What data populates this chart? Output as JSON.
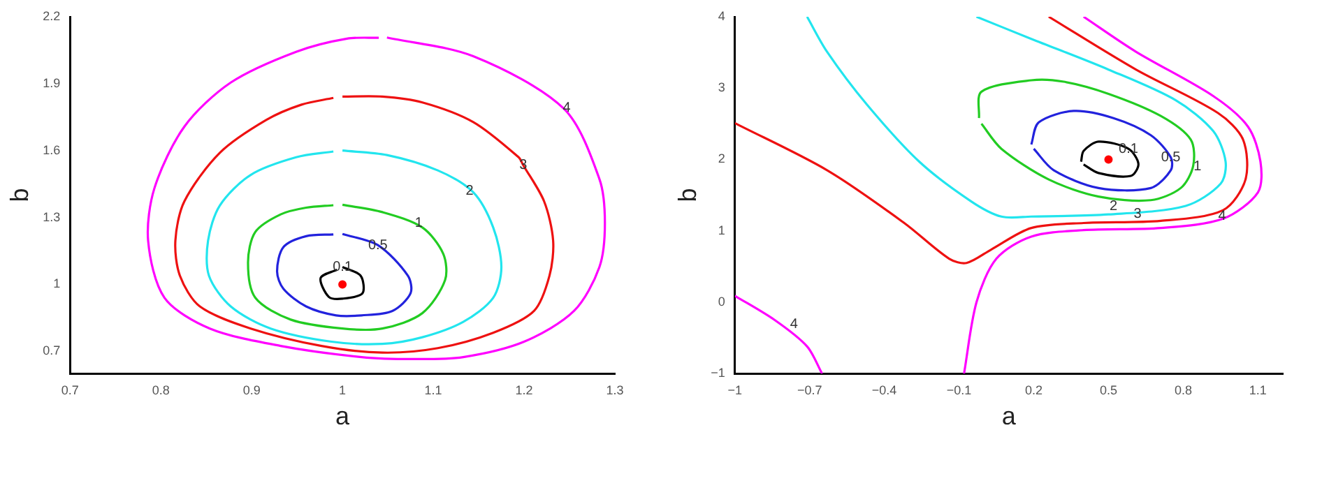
{
  "chart_data": [
    {
      "type": "line",
      "xlabel": "a",
      "ylabel": "b",
      "xlim": [
        0.7,
        1.3
      ],
      "ylim": [
        0.6,
        2.2
      ],
      "xticks": [
        0.7,
        0.8,
        0.9,
        1,
        1.1,
        1.2,
        1.3
      ],
      "yticks": [
        0.7,
        1,
        1.3,
        1.6,
        1.9,
        2.2
      ],
      "grid": false,
      "legend": false,
      "line_style": "solid",
      "series": [
        {
          "color": "#ff00ff",
          "x": [
            1.049,
            1.144,
            1.244,
            1.283,
            1.289,
            1.283,
            1.255,
            1.2,
            1.133,
            1.077,
            1.021,
            0.932,
            0.854,
            0.804,
            0.786,
            0.793,
            0.826,
            0.877,
            0.949,
            1.005,
            1.04
          ],
          "values": [
            2.107,
            2.023,
            1.787,
            1.472,
            1.275,
            1.078,
            0.881,
            0.743,
            0.674,
            0.665,
            0.674,
            0.724,
            0.802,
            0.94,
            1.196,
            1.432,
            1.708,
            1.905,
            2.043,
            2.102,
            2.106
          ]
        },
        {
          "color": "#ee1111",
          "x": [
            1.0,
            1.044,
            1.088,
            1.144,
            1.194,
            1.199,
            1.222,
            1.232,
            1.228,
            1.211,
            1.166,
            1.105,
            1.044,
            0.977,
            0.899,
            0.843,
            0.821,
            0.816,
            0.826,
            0.865,
            0.916,
            0.955,
            0.99
          ],
          "values": [
            1.842,
            1.842,
            1.816,
            1.728,
            1.57,
            1.535,
            1.373,
            1.196,
            1.039,
            0.881,
            0.783,
            0.714,
            0.694,
            0.724,
            0.802,
            0.901,
            1.039,
            1.196,
            1.373,
            1.59,
            1.737,
            1.806,
            1.836
          ]
        },
        {
          "color": "#22e5ee",
          "x": [
            1.0,
            1.049,
            1.105,
            1.144,
            1.166,
            1.175,
            1.166,
            1.133,
            1.088,
            1.044,
            0.988,
            0.921,
            0.877,
            0.853,
            0.852,
            0.865,
            0.899,
            0.949,
            0.99
          ],
          "values": [
            1.6,
            1.58,
            1.511,
            1.413,
            1.255,
            1.078,
            0.94,
            0.832,
            0.763,
            0.733,
            0.743,
            0.802,
            0.901,
            1.039,
            1.196,
            1.354,
            1.491,
            1.57,
            1.596
          ]
        },
        {
          "color": "#22cc22",
          "x": [
            1.0,
            1.044,
            1.088,
            1.111,
            1.113,
            1.088,
            1.044,
            1.0,
            0.943,
            0.904,
            0.896,
            0.904,
            0.932,
            0.96,
            0.99
          ],
          "values": [
            1.357,
            1.324,
            1.255,
            1.137,
            1.019,
            0.871,
            0.802,
            0.802,
            0.842,
            0.94,
            1.098,
            1.235,
            1.314,
            1.344,
            1.355
          ]
        },
        {
          "color": "#2222dd",
          "x": [
            1.0,
            1.039,
            1.072,
            1.075,
            1.055,
            1.021,
            0.993,
            0.96,
            0.935,
            0.928,
            0.935,
            0.96,
            0.99
          ],
          "values": [
            1.226,
            1.176,
            1.039,
            0.96,
            0.881,
            0.861,
            0.861,
            0.901,
            0.98,
            1.058,
            1.167,
            1.216,
            1.224
          ]
        },
        {
          "color": "#000000",
          "x": [
            1.0,
            1.02,
            1.022,
            1.0,
            0.985,
            0.976,
            0.994
          ],
          "values": [
            1.078,
            1.039,
            0.96,
            0.936,
            0.944,
            1.029,
            1.066
          ]
        },
        {
          "type": "scatter",
          "marker": "circle",
          "color": "#ff0000",
          "x": [
            1
          ],
          "values": [
            1
          ]
        }
      ],
      "annotations": [
        {
          "text": "4",
          "x": 1.247,
          "y": 1.791
        },
        {
          "text": "3",
          "x": 1.199,
          "y": 1.535
        },
        {
          "text": "2",
          "x": 1.14,
          "y": 1.419
        },
        {
          "text": "1",
          "x": 1.084,
          "y": 1.275
        },
        {
          "text": "0.5",
          "x": 1.039,
          "y": 1.176
        },
        {
          "text": "0.1",
          "x": 1.0,
          "y": 1.078
        }
      ]
    },
    {
      "type": "line",
      "xlabel": "a",
      "ylabel": "b",
      "xlim": [
        -1,
        1.2
      ],
      "ylim": [
        -1,
        4
      ],
      "xticks": [
        {
          "value": -1,
          "label": "−1"
        },
        {
          "value": -0.7,
          "label": "−0.7"
        },
        {
          "value": -0.4,
          "label": "−0.4"
        },
        {
          "value": -0.1,
          "label": "−0.1"
        },
        0.2,
        0.5,
        0.8,
        1.1
      ],
      "yticks": [
        {
          "value": -1,
          "label": "−1"
        },
        0,
        1,
        2,
        3,
        4
      ],
      "grid": false,
      "legend": false,
      "line_style": "solid",
      "series": [
        {
          "color": "#22e5ee",
          "x": [
            -0.71,
            -0.63,
            -0.47,
            -0.26,
            -0.05,
            0.07,
            0.19,
            0.5,
            0.81,
            0.95,
            0.97,
            0.92,
            0.77,
            0.5,
            0.19,
            -0.03
          ],
          "values": [
            4.0,
            3.51,
            2.77,
            1.97,
            1.41,
            1.2,
            1.2,
            1.23,
            1.35,
            1.66,
            1.97,
            2.4,
            2.83,
            3.26,
            3.69,
            4.0
          ]
        },
        {
          "color": "#ee1111",
          "x": [
            -1,
            -0.63,
            -0.32,
            -0.14,
            -0.07,
            0.03,
            0.19,
            0.4,
            0.71,
            0.96,
            1.05,
            1.04,
            0.94,
            0.61,
            0.26
          ],
          "values": [
            2.51,
            1.85,
            1.11,
            0.61,
            0.55,
            0.74,
            1.04,
            1.11,
            1.14,
            1.29,
            1.72,
            2.28,
            2.65,
            3.26,
            4.0
          ]
        },
        {
          "color": "#ff00ff",
          "x": [
            -0.08,
            -0.03,
            0.05,
            0.19,
            0.4,
            0.71,
            0.96,
            1.1,
            1.11,
            1.06,
            0.92,
            0.61,
            0.4
          ],
          "values": [
            -1.0,
            0.0,
            0.61,
            0.92,
            1.01,
            1.04,
            1.17,
            1.54,
            1.97,
            2.46,
            2.89,
            3.51,
            4.0
          ]
        },
        {
          "color": "#ff00ff",
          "x": [
            -1,
            -0.84,
            -0.71,
            -0.65
          ],
          "values": [
            0.09,
            -0.25,
            -0.62,
            -1.0
          ]
        },
        {
          "color": "#22cc22",
          "x": [
            -0.02,
            -0.01,
            0.19,
            0.32,
            0.5,
            0.71,
            0.83,
            0.84,
            0.79,
            0.67,
            0.46,
            0.26,
            0.07,
            -0.01
          ],
          "values": [
            2.58,
            2.95,
            3.11,
            3.09,
            2.92,
            2.61,
            2.28,
            1.91,
            1.6,
            1.43,
            1.48,
            1.72,
            2.15,
            2.5
          ]
        },
        {
          "color": "#2222dd",
          "x": [
            0.19,
            0.22,
            0.36,
            0.52,
            0.67,
            0.75,
            0.75,
            0.67,
            0.46,
            0.28,
            0.2
          ],
          "values": [
            2.21,
            2.52,
            2.68,
            2.58,
            2.34,
            2.03,
            1.85,
            1.6,
            1.6,
            1.85,
            2.15
          ]
        },
        {
          "color": "#000000",
          "x": [
            0.39,
            0.4,
            0.46,
            0.58,
            0.62,
            0.59,
            0.46,
            0.4
          ],
          "values": [
            1.97,
            2.12,
            2.25,
            2.15,
            1.94,
            1.77,
            1.81,
            1.93
          ]
        },
        {
          "type": "scatter",
          "marker": "circle",
          "color": "#ff0000",
          "x": [
            0.5
          ],
          "values": [
            2
          ]
        }
      ],
      "annotations": [
        {
          "text": "0.1",
          "x": 0.58,
          "y": 2.15
        },
        {
          "text": "0.5",
          "x": 0.75,
          "y": 2.03
        },
        {
          "text": "1",
          "x": 0.857,
          "y": 1.906
        },
        {
          "text": "2",
          "x": 0.52,
          "y": 1.34
        },
        {
          "text": "3",
          "x": 0.617,
          "y": 1.241
        },
        {
          "text": "4",
          "x": 0.956,
          "y": 1.21
        },
        {
          "text": "4",
          "x": -0.763,
          "y": -0.31
        }
      ]
    }
  ]
}
